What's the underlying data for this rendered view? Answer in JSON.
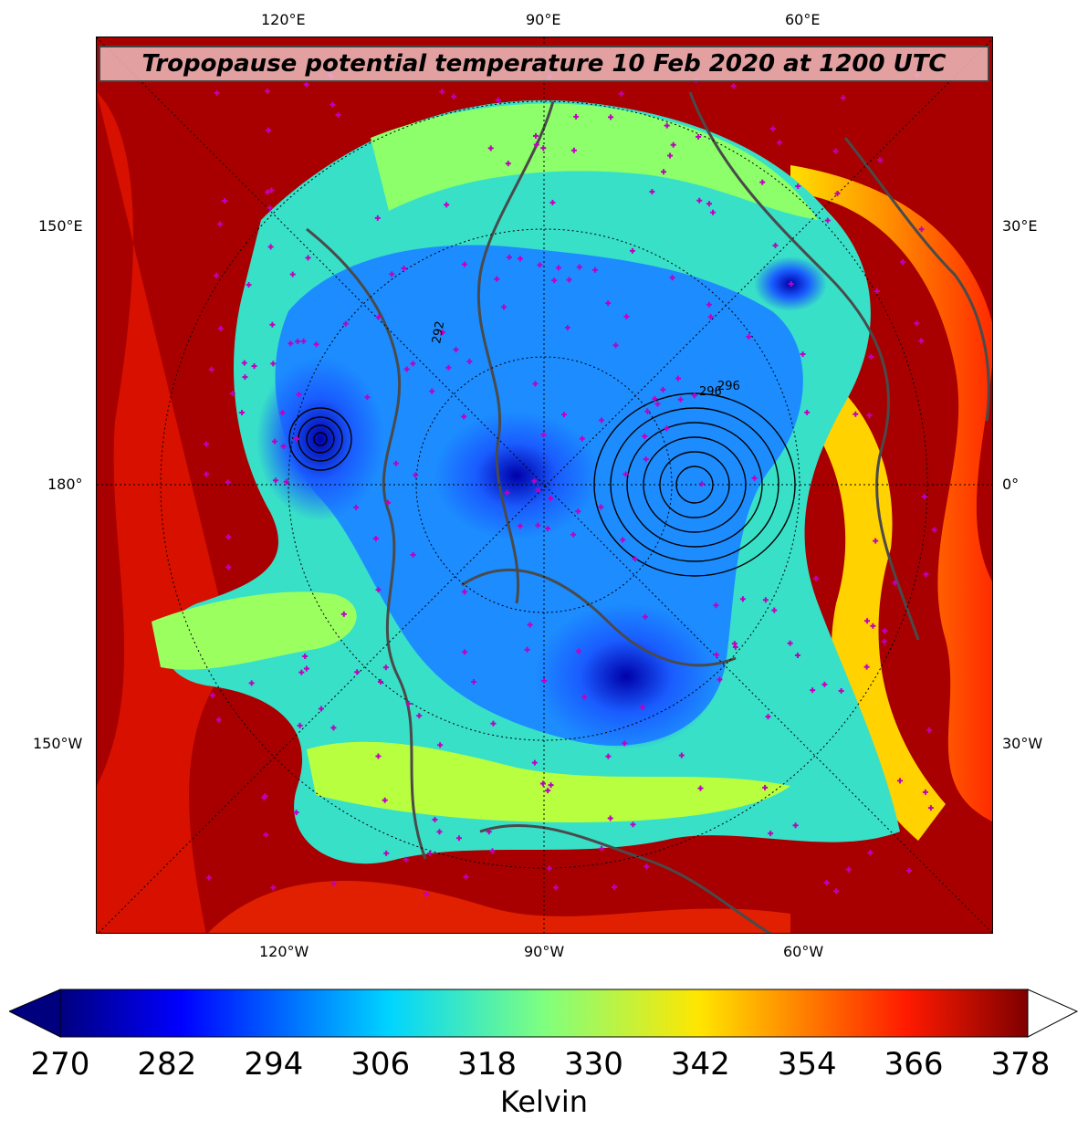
{
  "title": "Tropopause potential temperature 10 Feb 2020 at 1200 UTC",
  "ticks": {
    "top": [
      "120°E",
      "90°E",
      "60°E"
    ],
    "left": [
      "150°E",
      "180°",
      "150°W"
    ],
    "right": [
      "30°E",
      "0°",
      "30°W"
    ],
    "bottom": [
      "120°W",
      "90°W",
      "60°W"
    ]
  },
  "contour_labels": [
    "292",
    "296",
    "296"
  ],
  "colorbar": {
    "labels": [
      "270",
      "282",
      "294",
      "306",
      "318",
      "330",
      "342",
      "354",
      "366",
      "378"
    ],
    "unit": "Kelvin",
    "min": 270,
    "max": 378,
    "extend_low_color": "#00007f",
    "extend_high_color": "#ffffff",
    "colormap": "jet"
  },
  "colors": {
    "cold": "#0000cd",
    "mid": "#7fff7f",
    "warm": "#ff4500",
    "background_warm": "#8b0000",
    "coastline": "#4a4a4a",
    "station_marker": "#c000c0"
  }
}
